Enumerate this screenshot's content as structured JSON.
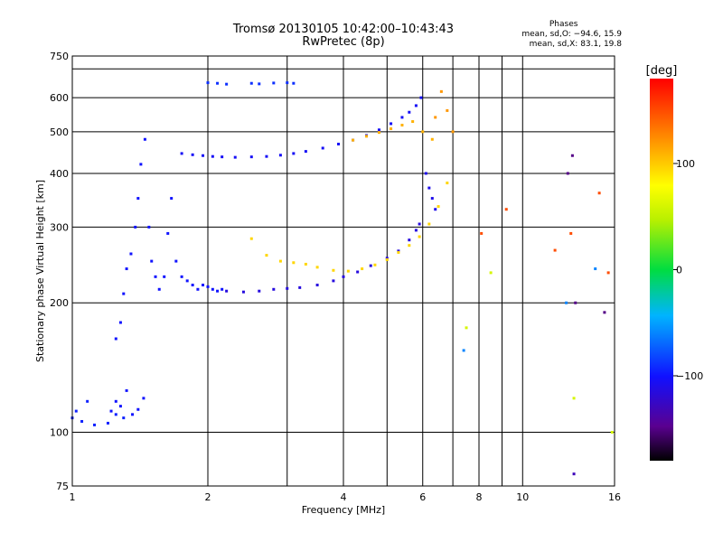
{
  "header": {
    "title_line1": "Tromsø 20130105 10:42:00–10:43:43",
    "title_line2": "RwPretec (8p)"
  },
  "phase_info": {
    "heading": "Phases",
    "line_o": "mean, sd,O: −94.6, 15.9",
    "line_x": "mean, sd,X:  83.1, 19.8"
  },
  "chart_data": {
    "type": "scatter",
    "xlabel": "Frequency [MHz]",
    "ylabel": "Stationary phase Virtual Height [km]",
    "xscale": "log",
    "yscale": "log",
    "xlim": [
      1,
      16
    ],
    "ylim": [
      75,
      750
    ],
    "xticks": [
      1,
      2,
      4,
      6,
      8,
      10,
      16
    ],
    "xtick_labels": [
      "1",
      "2",
      "4",
      "6",
      "8",
      "10",
      "16"
    ],
    "xgrid_extra": [
      3,
      5,
      7,
      9
    ],
    "yticks": [
      75,
      100,
      200,
      300,
      400,
      500,
      600,
      750
    ],
    "ytick_labels": [
      "75",
      "100",
      "200",
      "300",
      "400",
      "500",
      "600",
      "750"
    ],
    "ygrid_extra": [
      700
    ],
    "grid": true,
    "colorbar": {
      "label": "[deg]",
      "range": [
        -180,
        180
      ],
      "ticks": [
        100,
        0,
        -100
      ],
      "tick_labels": [
        "100",
        "0",
        "−100"
      ]
    },
    "series": [
      {
        "x": [
          1.0,
          1.02,
          1.05,
          1.08,
          1.12,
          1.2,
          1.25,
          1.3
        ],
        "y": [
          108,
          112,
          106,
          118,
          104,
          105,
          110,
          108
        ],
        "phase": -95
      },
      {
        "x": [
          1.22,
          1.25,
          1.28,
          1.32,
          1.36,
          1.4,
          1.44
        ],
        "y": [
          112,
          118,
          115,
          125,
          110,
          113,
          120
        ],
        "phase": -100
      },
      {
        "x": [
          1.25,
          1.28,
          1.3,
          1.32,
          1.35,
          1.38,
          1.4,
          1.42,
          1.45,
          1.48,
          1.5,
          1.53,
          1.56,
          1.6,
          1.63,
          1.66,
          1.7,
          1.75,
          1.8,
          1.85,
          1.9,
          1.95,
          2.0,
          2.05,
          2.1,
          2.15
        ],
        "y": [
          165,
          180,
          210,
          240,
          260,
          300,
          350,
          420,
          480,
          300,
          250,
          230,
          215,
          230,
          290,
          350,
          250,
          230,
          225,
          220,
          215,
          220,
          218,
          215,
          213,
          215
        ],
        "phase": -100
      },
      {
        "x": [
          2.2,
          2.4,
          2.6,
          2.8,
          3.0,
          3.2,
          3.5,
          3.8,
          4.0,
          4.3,
          4.6,
          5.0,
          5.3,
          5.6,
          5.8,
          5.9
        ],
        "y": [
          213,
          212,
          213,
          215,
          216,
          217,
          220,
          225,
          230,
          236,
          244,
          254,
          264,
          280,
          295,
          305
        ],
        "phase": -115
      },
      {
        "x": [
          1.75,
          1.85,
          1.95,
          2.05,
          2.15,
          2.3,
          2.5,
          2.7,
          2.9,
          3.1,
          3.3,
          3.6,
          3.9,
          4.2,
          4.5,
          4.8,
          5.1,
          5.4,
          5.6,
          5.8,
          5.95
        ],
        "y": [
          445,
          442,
          440,
          438,
          437,
          436,
          437,
          438,
          441,
          445,
          450,
          458,
          468,
          478,
          490,
          505,
          522,
          540,
          555,
          575,
          600
        ],
        "phase": -105
      },
      {
        "x": [
          2.0,
          2.1,
          2.2,
          2.5,
          2.6,
          2.8,
          3.0,
          3.1
        ],
        "y": [
          650,
          648,
          645,
          648,
          646,
          649,
          650,
          648
        ],
        "phase": -90
      },
      {
        "x": [
          2.5,
          2.7,
          2.9,
          3.1,
          3.3,
          3.5,
          3.8,
          4.1,
          4.4,
          4.7,
          5.0,
          5.3,
          5.6,
          5.9,
          6.2,
          6.5,
          6.8
        ],
        "y": [
          282,
          258,
          250,
          248,
          246,
          242,
          238,
          237,
          240,
          245,
          252,
          262,
          272,
          285,
          305,
          335,
          380
        ],
        "phase": 95
      },
      {
        "x": [
          4.2,
          4.5,
          4.8,
          5.1,
          5.4,
          5.7,
          6.0,
          6.3
        ],
        "y": [
          478,
          488,
          498,
          508,
          518,
          528,
          500,
          480
        ],
        "phase": 110
      },
      {
        "x": [
          6.4,
          6.6,
          6.8,
          7.0
        ],
        "y": [
          540,
          620,
          560,
          500
        ],
        "phase": 120
      },
      {
        "x": [
          6.1,
          6.2,
          6.3,
          6.4
        ],
        "y": [
          400,
          370,
          350,
          330
        ],
        "phase": -110
      },
      {
        "x": [
          8.1,
          9.2,
          11.8,
          12.8,
          14.8,
          15.5
        ],
        "y": [
          290,
          330,
          265,
          290,
          360,
          235
        ],
        "phase": 150
      },
      {
        "x": [
          12.6,
          12.9,
          13.1,
          15.2
        ],
        "y": [
          400,
          440,
          200,
          190
        ],
        "phase": -150
      },
      {
        "x": [
          7.5,
          8.5,
          13.0,
          15.8
        ],
        "y": [
          175,
          235,
          120,
          100
        ],
        "phase": 60
      },
      {
        "x": [
          7.4,
          12.5,
          14.5
        ],
        "y": [
          155,
          200,
          240
        ],
        "phase": -60
      },
      {
        "x": [
          13.0
        ],
        "y": [
          80
        ],
        "phase": -130
      }
    ]
  }
}
